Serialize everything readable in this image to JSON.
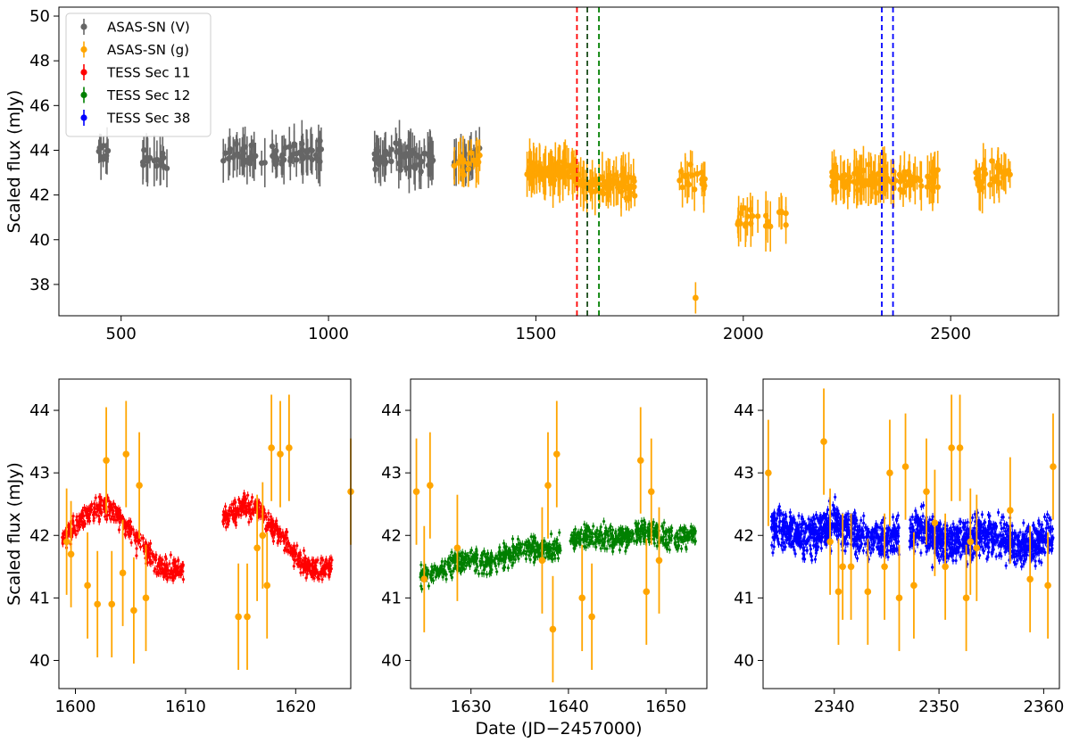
{
  "chart_data": [
    {
      "id": "top",
      "type": "scatter",
      "xlabel": "",
      "ylabel": "Scaled flux (mJy)",
      "xlim": [
        350,
        2760
      ],
      "ylim": [
        36.6,
        50.4
      ],
      "xticks": [
        500,
        1000,
        1500,
        2000,
        2500
      ],
      "yticks": [
        38,
        40,
        42,
        44,
        46,
        48,
        50
      ],
      "legend": {
        "position": "top-left",
        "entries": [
          {
            "label": "ASAS-SN (V)",
            "color": "#666666"
          },
          {
            "label": "ASAS-SN (g)",
            "color": "#FFA500"
          },
          {
            "label": "TESS Sec 11",
            "color": "#FF0000"
          },
          {
            "label": "TESS Sec 12",
            "color": "#008000"
          },
          {
            "label": "TESS Sec 38",
            "color": "#0000FF"
          }
        ]
      },
      "vlines": [
        {
          "x": 1599,
          "color": "#FF0000"
        },
        {
          "x": 1624,
          "color": "#1a4d1a"
        },
        {
          "x": 1652,
          "color": "#008000"
        },
        {
          "x": 2334,
          "color": "#0000FF"
        },
        {
          "x": 2361,
          "color": "#0000FF"
        }
      ],
      "series": [
        {
          "name": "ASAS-SN (V)",
          "color": "#666666",
          "segments": [
            {
              "x_start": 440,
              "x_end": 480,
              "y": 43.8,
              "n": 10
            },
            {
              "x_start": 545,
              "x_end": 630,
              "y": 43.5,
              "n": 16
            },
            {
              "x_start": 745,
              "x_end": 985,
              "y": 43.8,
              "n": 70
            },
            {
              "x_start": 1110,
              "x_end": 1255,
              "y": 43.7,
              "n": 60
            },
            {
              "x_start": 1300,
              "x_end": 1365,
              "y": 43.6,
              "n": 20
            }
          ]
        },
        {
          "name": "ASAS-SN (g)",
          "color": "#FFA500",
          "segments": [
            {
              "x_start": 1290,
              "x_end": 1365,
              "y": 43.5,
              "n": 16
            },
            {
              "x_start": 1475,
              "x_end": 1600,
              "y": 43.1,
              "n": 70
            },
            {
              "x_start": 1600,
              "x_end": 1740,
              "y": 42.4,
              "n": 60
            },
            {
              "x_start": 1845,
              "x_end": 1910,
              "y": 42.6,
              "n": 20
            },
            {
              "x_start": 1985,
              "x_end": 2110,
              "y": 40.9,
              "n": 22
            },
            {
              "x_start": 2200,
              "x_end": 2470,
              "y": 42.7,
              "n": 110
            },
            {
              "x_start": 2560,
              "x_end": 2650,
              "y": 42.9,
              "n": 30
            }
          ],
          "points": [
            {
              "x": 1885,
              "y": 37.4
            }
          ]
        }
      ]
    },
    {
      "id": "sector-11",
      "type": "scatter",
      "xlabel": "",
      "ylabel": "Scaled flux (mJy)",
      "xlim": [
        1598.5,
        1625
      ],
      "ylim": [
        39.55,
        44.5
      ],
      "xticks": [
        1600,
        1610,
        1620
      ],
      "yticks": [
        40,
        41,
        42,
        43,
        44
      ],
      "series": [
        {
          "name": "TESS Sec 11",
          "color": "#FF0000",
          "ranges": [
            [
              1598.8,
              1609.8
            ],
            [
              1613.4,
              1623.3
            ]
          ],
          "n_points": 800
        },
        {
          "name": "ASAS-SN (g)",
          "color": "#FFA500",
          "points": [
            {
              "x": 1599.2,
              "y": 41.9
            },
            {
              "x": 1599.6,
              "y": 41.7
            },
            {
              "x": 1601.1,
              "y": 41.2
            },
            {
              "x": 1602.0,
              "y": 40.9
            },
            {
              "x": 1602.8,
              "y": 43.2
            },
            {
              "x": 1603.3,
              "y": 40.9
            },
            {
              "x": 1604.3,
              "y": 41.4
            },
            {
              "x": 1604.6,
              "y": 43.3
            },
            {
              "x": 1605.3,
              "y": 40.8
            },
            {
              "x": 1605.8,
              "y": 42.8
            },
            {
              "x": 1606.4,
              "y": 41.0
            },
            {
              "x": 1614.8,
              "y": 40.7
            },
            {
              "x": 1615.6,
              "y": 40.7
            },
            {
              "x": 1616.5,
              "y": 41.8
            },
            {
              "x": 1617.0,
              "y": 42.0
            },
            {
              "x": 1617.4,
              "y": 41.2
            },
            {
              "x": 1617.8,
              "y": 43.4
            },
            {
              "x": 1618.6,
              "y": 43.3
            },
            {
              "x": 1619.4,
              "y": 43.4
            },
            {
              "x": 1625.0,
              "y": 42.7
            }
          ]
        }
      ]
    },
    {
      "id": "sector-12",
      "type": "scatter",
      "xlabel": "Date (JD−2457000)",
      "ylabel": "",
      "xlim": [
        1623.8,
        1654.2
      ],
      "ylim": [
        39.55,
        44.5
      ],
      "xticks": [
        1630,
        1640,
        1650
      ],
      "yticks": [
        40,
        41,
        42,
        43,
        44
      ],
      "series": [
        {
          "name": "TESS Sec 12",
          "color": "#008000",
          "ranges": [
            [
              1624.8,
              1639.2
            ],
            [
              1640.2,
              1653.1
            ]
          ],
          "n_points": 900
        },
        {
          "name": "ASAS-SN (g)",
          "color": "#FFA500",
          "points": [
            {
              "x": 1624.4,
              "y": 42.7
            },
            {
              "x": 1625.2,
              "y": 41.3
            },
            {
              "x": 1625.8,
              "y": 42.8
            },
            {
              "x": 1628.6,
              "y": 41.8
            },
            {
              "x": 1637.3,
              "y": 41.6
            },
            {
              "x": 1637.9,
              "y": 42.8
            },
            {
              "x": 1638.4,
              "y": 40.5
            },
            {
              "x": 1638.8,
              "y": 43.3
            },
            {
              "x": 1641.4,
              "y": 41.0
            },
            {
              "x": 1642.4,
              "y": 40.7
            },
            {
              "x": 1647.4,
              "y": 43.2
            },
            {
              "x": 1648.0,
              "y": 41.1
            },
            {
              "x": 1648.5,
              "y": 42.7
            },
            {
              "x": 1649.3,
              "y": 41.6
            }
          ]
        }
      ]
    },
    {
      "id": "sector-38",
      "type": "scatter",
      "xlabel": "",
      "ylabel": "",
      "xlim": [
        2333.2,
        2361.5
      ],
      "ylim": [
        39.55,
        44.5
      ],
      "xticks": [
        2340,
        2350,
        2360
      ],
      "yticks": [
        40,
        41,
        42,
        43,
        44
      ],
      "series": [
        {
          "name": "TESS Sec 38",
          "color": "#0000FF",
          "ranges": [
            [
              2334.0,
              2346.2
            ],
            [
              2347.2,
              2360.9
            ]
          ],
          "n_points": 1600
        },
        {
          "name": "ASAS-SN (g)",
          "color": "#FFA500",
          "points": [
            {
              "x": 2333.7,
              "y": 43.0
            },
            {
              "x": 2339.0,
              "y": 43.5
            },
            {
              "x": 2339.6,
              "y": 41.9
            },
            {
              "x": 2340.4,
              "y": 41.1
            },
            {
              "x": 2340.8,
              "y": 41.5
            },
            {
              "x": 2341.6,
              "y": 41.5
            },
            {
              "x": 2343.2,
              "y": 41.1
            },
            {
              "x": 2344.8,
              "y": 41.5
            },
            {
              "x": 2345.3,
              "y": 43.0
            },
            {
              "x": 2346.2,
              "y": 41.0
            },
            {
              "x": 2346.8,
              "y": 43.1
            },
            {
              "x": 2347.6,
              "y": 41.2
            },
            {
              "x": 2348.8,
              "y": 42.7
            },
            {
              "x": 2349.6,
              "y": 42.2
            },
            {
              "x": 2350.6,
              "y": 41.5
            },
            {
              "x": 2351.2,
              "y": 43.4
            },
            {
              "x": 2352.0,
              "y": 43.4
            },
            {
              "x": 2352.6,
              "y": 41.0
            },
            {
              "x": 2353.0,
              "y": 41.9
            },
            {
              "x": 2353.6,
              "y": 41.8
            },
            {
              "x": 2356.8,
              "y": 42.4
            },
            {
              "x": 2358.7,
              "y": 41.3
            },
            {
              "x": 2360.4,
              "y": 41.2
            },
            {
              "x": 2360.9,
              "y": 43.1
            }
          ]
        }
      ]
    }
  ]
}
